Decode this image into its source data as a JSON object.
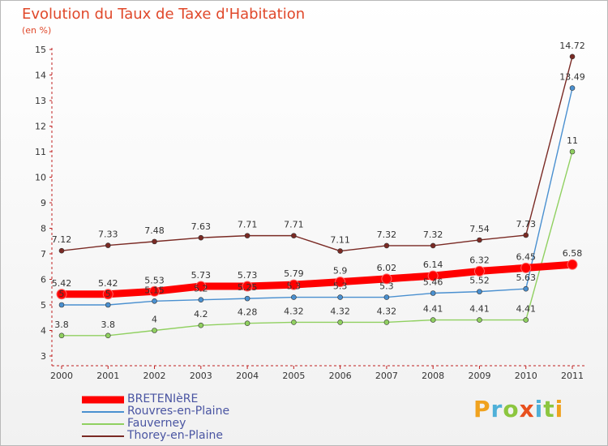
{
  "title": "Evolution du Taux de Taxe d'Habitation",
  "unit": "(en %)",
  "logo": "Proxiti",
  "logo_colors": [
    "#f0a21e",
    "#4fb0d8",
    "#8cc63f",
    "#e8501e",
    "#4fb0d8",
    "#8cc63f",
    "#f0a21e"
  ],
  "chart_data": {
    "type": "line",
    "title": "Evolution du Taux de Taxe d'Habitation",
    "ylabel": "(en %)",
    "xlabel": "",
    "ylim": [
      3,
      15
    ],
    "yticks": [
      3,
      4,
      5,
      6,
      7,
      8,
      9,
      10,
      11,
      12,
      13,
      14,
      15
    ],
    "x": [
      "2000",
      "2001",
      "2002",
      "2003",
      "2004",
      "2005",
      "2006",
      "2007",
      "2008",
      "2009",
      "2010",
      "2011"
    ],
    "grid": false,
    "legend": "bottom-left",
    "series": [
      {
        "name": "BRETENIèRE",
        "color": "#ff0000",
        "values": [
          5.42,
          5.42,
          5.53,
          5.73,
          5.73,
          5.79,
          5.9,
          6.02,
          6.14,
          6.32,
          6.45,
          6.58
        ],
        "labels": [
          "5.42",
          "5.42",
          "5.53",
          "5.73",
          "5.73",
          "5.79",
          "5.9",
          "6.02",
          "6.14",
          "6.32",
          "6.45",
          "6.58"
        ]
      },
      {
        "name": "Rouvres-en-Plaine",
        "color": "#4a90d0",
        "values": [
          5,
          5,
          5.15,
          5.2,
          5.25,
          5.3,
          5.3,
          5.3,
          5.46,
          5.52,
          5.63,
          13.49
        ],
        "labels": [
          "5",
          "5",
          "5.15",
          "5.2",
          "5.25",
          "5.3",
          "5.3",
          "5.3",
          "5.46",
          "5.52",
          "5.63",
          "13.49"
        ]
      },
      {
        "name": "Fauverney",
        "color": "#90d060",
        "values": [
          3.8,
          3.8,
          4,
          4.2,
          4.28,
          4.32,
          4.32,
          4.32,
          4.41,
          4.41,
          4.41,
          11
        ],
        "labels": [
          "3.8",
          "3.8",
          "4",
          "4.2",
          "4.28",
          "4.32",
          "4.32",
          "4.32",
          "4.41",
          "4.41",
          "4.41",
          "11"
        ]
      },
      {
        "name": "Thorey-en-Plaine",
        "color": "#7a2a24",
        "values": [
          7.12,
          7.33,
          7.48,
          7.63,
          7.71,
          7.71,
          7.11,
          7.32,
          7.32,
          7.54,
          7.73,
          14.72
        ],
        "labels": [
          "7.12",
          "7.33",
          "7.48",
          "7.63",
          "7.71",
          "7.71",
          "7.11",
          "7.32",
          "7.32",
          "7.54",
          "7.73",
          "14.72"
        ]
      }
    ]
  }
}
